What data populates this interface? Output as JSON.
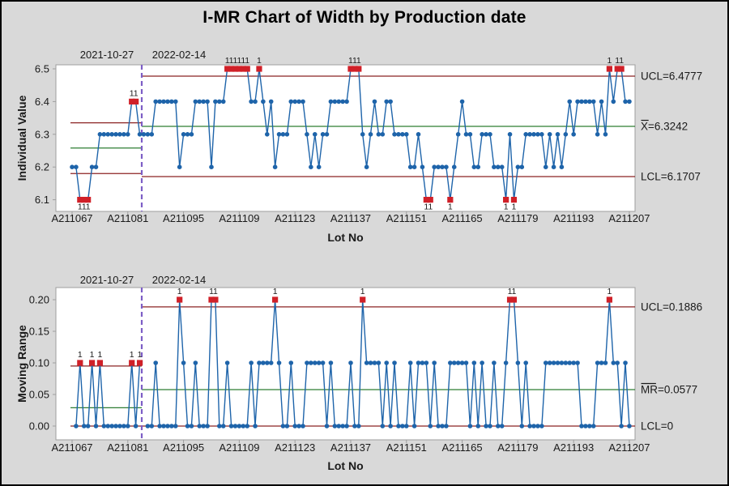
{
  "title": "I-MR Chart of Width by Production date",
  "colors": {
    "figure_background": "#d9d9d9",
    "plot_background": "#ffffff",
    "frame": "#9e9e9e",
    "series_blue": "#1e64aa",
    "out_of_control_red": "#d02028",
    "control_limit_dark_red": "#8b2323",
    "center_line_green": "#2e7d32",
    "stage_boundary_purple": "#7d5ec6",
    "text": "#1a1a1a"
  },
  "chart_data": [
    {
      "type": "line",
      "subtype": "individuals-control-chart",
      "ylabel": "Individual Value",
      "xlabel": "Lot No",
      "ylim": [
        6.1,
        6.5
      ],
      "yticks": [
        "6.5",
        "6.4",
        "6.3",
        "6.2",
        "6.1"
      ],
      "ytick_values": [
        6.5,
        6.4,
        6.3,
        6.2,
        6.1
      ],
      "xtick_labels": [
        "A211067",
        "A211081",
        "A211095",
        "A211109",
        "A211123",
        "A211137",
        "A211151",
        "A211165",
        "A211179",
        "A211193",
        "A211207"
      ],
      "xtick_every": 14,
      "grid": false,
      "stages": [
        {
          "label": "2021-10-27",
          "start_index": 1,
          "end_index": 18,
          "ucl": 6.335,
          "center": 6.258,
          "lcl": 6.18
        },
        {
          "label": "2022-02-14",
          "start_index": 19,
          "end_index": 141,
          "ucl": 6.4777,
          "center": 6.3242,
          "lcl": 6.1707
        }
      ],
      "limit_labels": [
        {
          "text": "UCL=6.4777",
          "at": 6.4777,
          "bar_chars": 0
        },
        {
          "text": "X=6.3242",
          "at": 6.3242,
          "bar_chars": 1
        },
        {
          "text": "LCL=6.1707",
          "at": 6.1707,
          "bar_chars": 0
        }
      ],
      "flag_label": "1",
      "out_of_control_indices": [
        3,
        4,
        5,
        16,
        17,
        40,
        41,
        42,
        43,
        44,
        45,
        48,
        71,
        72,
        73,
        90,
        91,
        96,
        110,
        112,
        136,
        138,
        139
      ],
      "values": [
        6.2,
        6.2,
        6.1,
        6.1,
        6.1,
        6.2,
        6.2,
        6.3,
        6.3,
        6.3,
        6.3,
        6.3,
        6.3,
        6.3,
        6.3,
        6.4,
        6.4,
        6.3,
        6.3,
        6.3,
        6.3,
        6.4,
        6.4,
        6.4,
        6.4,
        6.4,
        6.4,
        6.2,
        6.3,
        6.3,
        6.3,
        6.4,
        6.4,
        6.4,
        6.4,
        6.2,
        6.4,
        6.4,
        6.4,
        6.5,
        6.5,
        6.5,
        6.5,
        6.5,
        6.5,
        6.4,
        6.4,
        6.5,
        6.4,
        6.3,
        6.4,
        6.2,
        6.3,
        6.3,
        6.3,
        6.4,
        6.4,
        6.4,
        6.4,
        6.3,
        6.2,
        6.3,
        6.2,
        6.3,
        6.3,
        6.4,
        6.4,
        6.4,
        6.4,
        6.4,
        6.5,
        6.5,
        6.5,
        6.3,
        6.2,
        6.3,
        6.4,
        6.3,
        6.3,
        6.4,
        6.4,
        6.3,
        6.3,
        6.3,
        6.3,
        6.2,
        6.2,
        6.3,
        6.2,
        6.1,
        6.1,
        6.2,
        6.2,
        6.2,
        6.2,
        6.1,
        6.2,
        6.3,
        6.4,
        6.3,
        6.3,
        6.2,
        6.2,
        6.3,
        6.3,
        6.3,
        6.2,
        6.2,
        6.2,
        6.1,
        6.3,
        6.1,
        6.2,
        6.2,
        6.3,
        6.3,
        6.3,
        6.3,
        6.3,
        6.2,
        6.3,
        6.2,
        6.3,
        6.2,
        6.3,
        6.4,
        6.3,
        6.4,
        6.4,
        6.4,
        6.4,
        6.4,
        6.3,
        6.4,
        6.3,
        6.5,
        6.4,
        6.5,
        6.5,
        6.4,
        6.4
      ]
    },
    {
      "type": "line",
      "subtype": "moving-range-control-chart",
      "ylabel": "Moving Range",
      "xlabel": "Lot No",
      "ylim": [
        0.0,
        0.2
      ],
      "yticks": [
        "0.20",
        "0.15",
        "0.10",
        "0.05",
        "0.00"
      ],
      "ytick_values": [
        0.2,
        0.15,
        0.1,
        0.05,
        0.0
      ],
      "xtick_labels": [
        "A211067",
        "A211081",
        "A211095",
        "A211109",
        "A211123",
        "A211137",
        "A211151",
        "A211165",
        "A211179",
        "A211193",
        "A211207"
      ],
      "xtick_every": 14,
      "grid": false,
      "stages": [
        {
          "label": "2021-10-27",
          "start_index": 1,
          "end_index": 18,
          "ucl": 0.095,
          "center": 0.029,
          "lcl": 0
        },
        {
          "label": "2022-02-14",
          "start_index": 19,
          "end_index": 141,
          "ucl": 0.1886,
          "center": 0.0577,
          "lcl": 0
        }
      ],
      "limit_labels": [
        {
          "text": "UCL=0.1886",
          "at": 0.1886,
          "bar_chars": 0
        },
        {
          "text": "MR=0.0577",
          "at": 0.0577,
          "bar_chars": 2
        },
        {
          "text": "LCL=0",
          "at": 0.0,
          "bar_chars": 0
        }
      ],
      "flag_label": "1",
      "out_of_control_indices": [
        3,
        6,
        8,
        16,
        18,
        28,
        36,
        37,
        52,
        74,
        111,
        112,
        136
      ],
      "values": [
        null,
        0,
        0.1,
        0,
        0,
        0.1,
        0,
        0.1,
        0,
        0,
        0,
        0,
        0,
        0,
        0,
        0.1,
        0,
        0.1,
        null,
        0,
        0,
        0.1,
        0,
        0,
        0,
        0,
        0,
        0.2,
        0.1,
        0,
        0,
        0.1,
        0,
        0,
        0,
        0.2,
        0.2,
        0,
        0,
        0.1,
        0,
        0,
        0,
        0,
        0,
        0.1,
        0,
        0.1,
        0.1,
        0.1,
        0.1,
        0.2,
        0.1,
        0,
        0,
        0.1,
        0,
        0,
        0,
        0.1,
        0.1,
        0.1,
        0.1,
        0.1,
        0,
        0.1,
        0,
        0,
        0,
        0,
        0.1,
        0,
        0,
        0.2,
        0.1,
        0.1,
        0.1,
        0.1,
        0,
        0.1,
        0,
        0.1,
        0,
        0,
        0,
        0.1,
        0,
        0.1,
        0.1,
        0.1,
        0,
        0.1,
        0,
        0,
        0,
        0.1,
        0.1,
        0.1,
        0.1,
        0.1,
        0,
        0.1,
        0,
        0.1,
        0,
        0,
        0.1,
        0,
        0,
        0.1,
        0.2,
        0.2,
        0.1,
        0,
        0.1,
        0,
        0,
        0,
        0,
        0.1,
        0.1,
        0.1,
        0.1,
        0.1,
        0.1,
        0.1,
        0.1,
        0.1,
        0,
        0,
        0,
        0,
        0.1,
        0.1,
        0.1,
        0.2,
        0.1,
        0.1,
        0,
        0.1,
        0
      ]
    }
  ]
}
